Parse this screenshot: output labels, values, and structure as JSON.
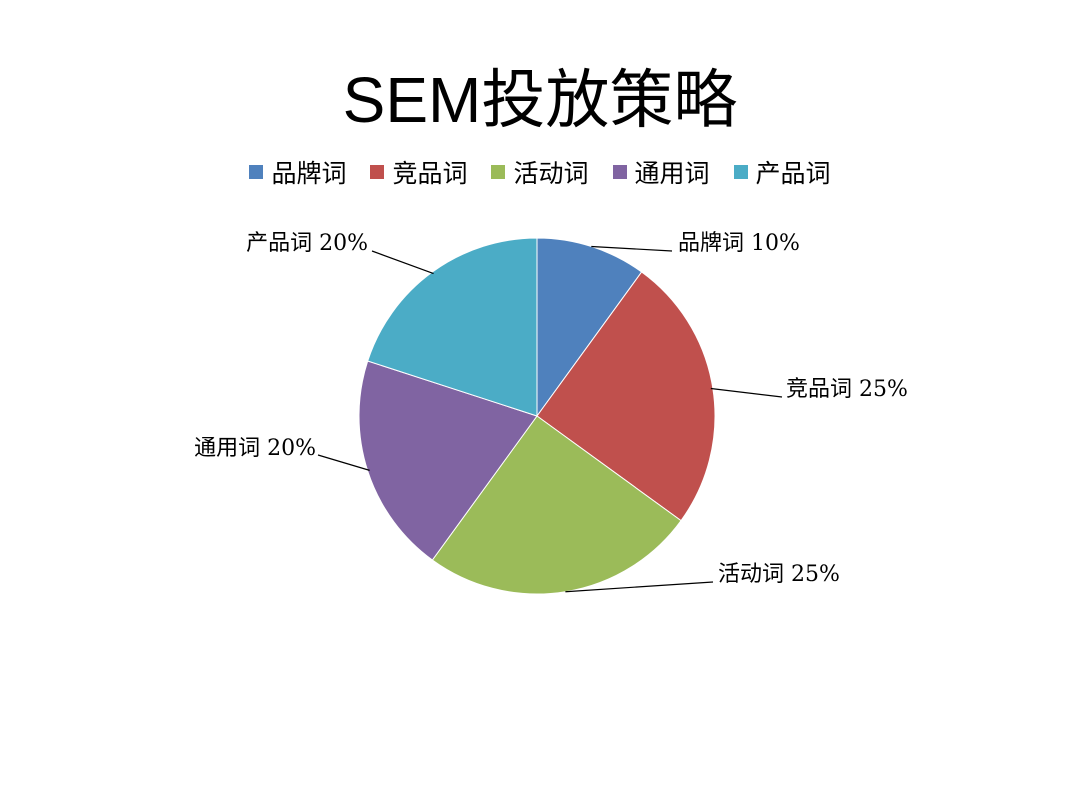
{
  "chart_data": {
    "type": "pie",
    "title": "SEM投放策略",
    "legend_position": "top",
    "slices": [
      {
        "name": "品牌词",
        "value": 10,
        "label": "品牌词  10%",
        "color": "#4F81BD"
      },
      {
        "name": "竞品词",
        "value": 25,
        "label": "竞品词  25%",
        "color": "#C0504D"
      },
      {
        "name": "活动词",
        "value": 25,
        "label": "活动词 25%",
        "color": "#9BBB59"
      },
      {
        "name": "通用词",
        "value": 20,
        "label": "通用词 20%",
        "color": "#8064A2"
      },
      {
        "name": "产品词",
        "value": 20,
        "label": "产品词 20%",
        "color": "#4BACC6"
      }
    ]
  }
}
